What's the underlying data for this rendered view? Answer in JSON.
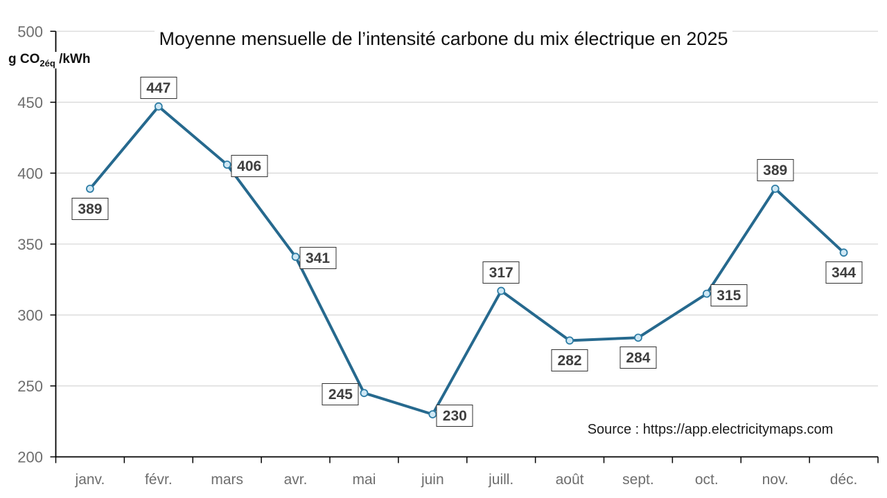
{
  "title": "Moyenne mensuelle de l’intensité carbone du mix électrique en 2025",
  "y_axis_unit": {
    "prefix": "g CO",
    "sub": "2éq",
    "suffix": " /kWh"
  },
  "source": "Source : https://app.electricitymaps.com",
  "colors": {
    "line": "#26698e",
    "marker_fill": "#cfe8f5",
    "marker_stroke": "#2e7da5",
    "gridline": "#d9d9d9",
    "axis": "#000000",
    "tick_label": "#6e6e6e",
    "data_label_text": "#3f3f3f",
    "data_label_border": "#303030",
    "title_text": "#111111"
  },
  "chart_data": {
    "type": "line",
    "title": "Moyenne mensuelle de l’intensité carbone du mix électrique en 2025",
    "ylabel": "g CO2éq /kWh",
    "categories": [
      "janv.",
      "févr.",
      "mars",
      "avr.",
      "mai",
      "juin",
      "juill.",
      "août",
      "sept.",
      "oct.",
      "nov.",
      "déc."
    ],
    "values": [
      389,
      447,
      406,
      341,
      245,
      230,
      317,
      282,
      284,
      315,
      389,
      344
    ],
    "ylim": [
      200,
      500
    ],
    "ytick_step": 50,
    "yticks": [
      200,
      250,
      300,
      350,
      400,
      450,
      500
    ],
    "grid": true,
    "legend": "none",
    "annotation": "Source : https://app.electricitymaps.com",
    "label_positions": [
      "below",
      "above",
      "right",
      "right",
      "left",
      "right",
      "above",
      "below",
      "below",
      "right",
      "above",
      "below"
    ]
  }
}
